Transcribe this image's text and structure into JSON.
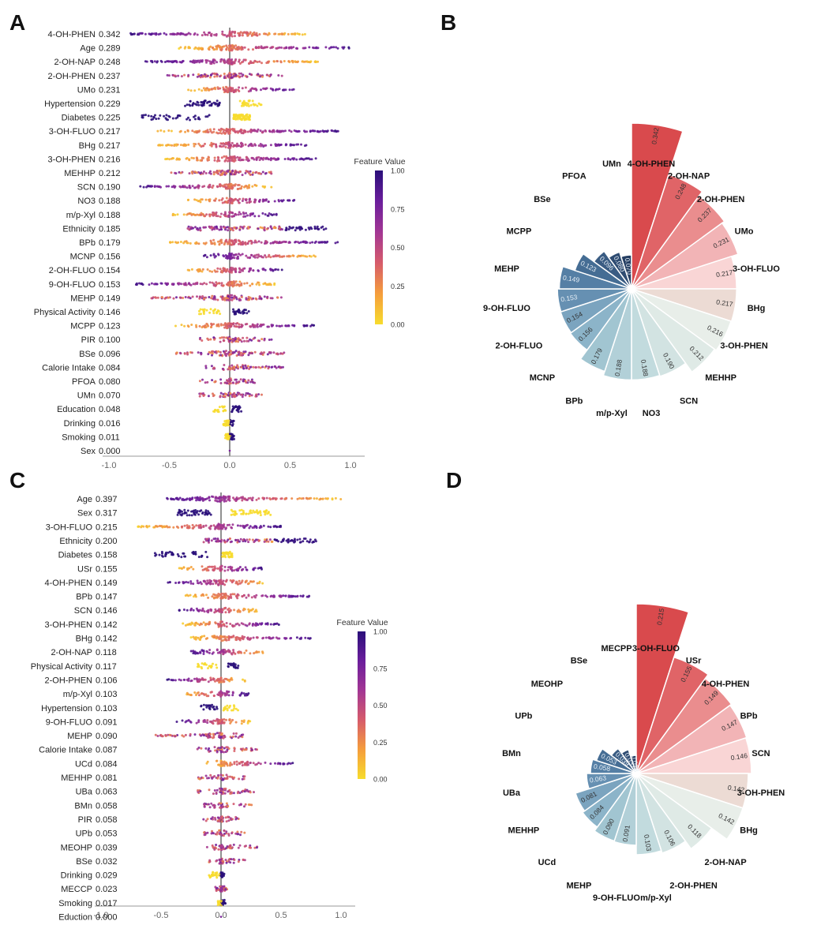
{
  "panels": [
    {
      "letter": "A"
    },
    {
      "letter": "B"
    },
    {
      "letter": "C"
    },
    {
      "letter": "D"
    }
  ],
  "colorbar": {
    "title": "Feature Value",
    "ticks": [
      "1.00",
      "0.75",
      "0.50",
      "0.25",
      "0.00"
    ],
    "stops": [
      "#2a0f7a",
      "#6b1e9c",
      "#a23694",
      "#d65b6b",
      "#f59d3c",
      "#f7dc2d"
    ]
  },
  "chart_data": [
    {
      "type": "scatter",
      "subtype": "shap-beeswarm",
      "panel": "A",
      "xlim": [
        -1.0,
        1.0
      ],
      "x_ticks": [
        "-1.0",
        "-0.5",
        "0.0",
        "0.5",
        "1.0"
      ],
      "features": [
        {
          "name": "4-OH-PHEN",
          "importance": "0.342",
          "min": -0.82,
          "max": 0.65,
          "pattern": "hi-neg"
        },
        {
          "name": "Age",
          "importance": "0.289",
          "min": -0.42,
          "max": 1.0,
          "pattern": "hi-pos"
        },
        {
          "name": "2-OH-NAP",
          "importance": "0.248",
          "min": -0.7,
          "max": 0.75,
          "pattern": "hi-neg"
        },
        {
          "name": "2-OH-PHEN",
          "importance": "0.237",
          "min": -0.55,
          "max": 0.45,
          "pattern": "mixed"
        },
        {
          "name": "UMo",
          "importance": "0.231",
          "min": -0.35,
          "max": 0.55,
          "pattern": "hi-pos"
        },
        {
          "name": "Hypertension",
          "importance": "0.229",
          "min": -0.4,
          "max": 0.28,
          "pattern": "binary-hi-neg"
        },
        {
          "name": "Diabetes",
          "importance": "0.225",
          "min": -0.8,
          "max": 0.18,
          "pattern": "binary-hi-neg"
        },
        {
          "name": "3-OH-FLUO",
          "importance": "0.217",
          "min": -0.6,
          "max": 0.9,
          "pattern": "hi-pos"
        },
        {
          "name": "BHg",
          "importance": "0.217",
          "min": -0.6,
          "max": 0.65,
          "pattern": "hi-pos"
        },
        {
          "name": "3-OH-PHEN",
          "importance": "0.216",
          "min": -0.55,
          "max": 0.75,
          "pattern": "hi-pos"
        },
        {
          "name": "MEHHP",
          "importance": "0.212",
          "min": -0.5,
          "max": 0.35,
          "pattern": "mixed"
        },
        {
          "name": "SCN",
          "importance": "0.190",
          "min": -0.75,
          "max": 0.35,
          "pattern": "hi-neg"
        },
        {
          "name": "NO3",
          "importance": "0.188",
          "min": -0.35,
          "max": 0.55,
          "pattern": "hi-pos"
        },
        {
          "name": "m/p-Xyl",
          "importance": "0.188",
          "min": -0.48,
          "max": 0.4,
          "pattern": "hi-pos"
        },
        {
          "name": "Ethnicity",
          "importance": "0.185",
          "min": -0.35,
          "max": 0.8,
          "pattern": "categorical"
        },
        {
          "name": "BPb",
          "importance": "0.179",
          "min": -0.5,
          "max": 0.9,
          "pattern": "hi-pos"
        },
        {
          "name": "MCNP",
          "importance": "0.156",
          "min": -0.22,
          "max": 0.72,
          "pattern": "hi-neg"
        },
        {
          "name": "2-OH-FLUO",
          "importance": "0.154",
          "min": -0.35,
          "max": 0.45,
          "pattern": "hi-pos"
        },
        {
          "name": "9-OH-FLUO",
          "importance": "0.153",
          "min": -0.78,
          "max": 0.38,
          "pattern": "hi-neg"
        },
        {
          "name": "MEHP",
          "importance": "0.149",
          "min": -0.65,
          "max": 0.45,
          "pattern": "mixed"
        },
        {
          "name": "Physical Activity",
          "importance": "0.146",
          "min": -0.28,
          "max": 0.18,
          "pattern": "binary-hi-pos"
        },
        {
          "name": "MCPP",
          "importance": "0.123",
          "min": -0.45,
          "max": 0.7,
          "pattern": "hi-pos"
        },
        {
          "name": "PIR",
          "importance": "0.100",
          "min": -0.25,
          "max": 0.35,
          "pattern": "mixed"
        },
        {
          "name": "BSe",
          "importance": "0.096",
          "min": -0.45,
          "max": 0.45,
          "pattern": "mixed"
        },
        {
          "name": "Calorie Intake",
          "importance": "0.084",
          "min": -0.22,
          "max": 0.45,
          "pattern": "mixed"
        },
        {
          "name": "PFOA",
          "importance": "0.080",
          "min": -0.25,
          "max": 0.22,
          "pattern": "mixed"
        },
        {
          "name": "UMn",
          "importance": "0.070",
          "min": -0.25,
          "max": 0.28,
          "pattern": "mixed"
        },
        {
          "name": "Education",
          "importance": "0.048",
          "min": -0.15,
          "max": 0.1,
          "pattern": "binary-hi-pos"
        },
        {
          "name": "Drinking",
          "importance": "0.016",
          "min": -0.05,
          "max": 0.03,
          "pattern": "binary-hi-pos"
        },
        {
          "name": "Smoking",
          "importance": "0.011",
          "min": -0.03,
          "max": 0.03,
          "pattern": "binary-hi-pos"
        },
        {
          "name": "Sex",
          "importance": "0.000",
          "min": 0.0,
          "max": 0.0,
          "pattern": "zero"
        }
      ]
    },
    {
      "type": "bar",
      "subtype": "polar",
      "panel": "B",
      "max_value": 0.342,
      "categories": [
        "4-OH-PHEN",
        "2-OH-NAP",
        "2-OH-PHEN",
        "UMo",
        "3-OH-FLUO",
        "BHg",
        "3-OH-PHEN",
        "MEHHP",
        "SCN",
        "NO3",
        "m/p-Xyl",
        "BPb",
        "MCNP",
        "2-OH-FLUO",
        "9-OH-FLUO",
        "MEHP",
        "MCPP",
        "BSe",
        "PFOA",
        "UMn"
      ],
      "values": [
        0.342,
        0.248,
        0.237,
        0.231,
        0.217,
        0.217,
        0.216,
        0.212,
        0.19,
        0.188,
        0.188,
        0.179,
        0.156,
        0.154,
        0.153,
        0.149,
        0.123,
        0.096,
        0.08,
        0.07
      ],
      "value_labels": [
        "0.342",
        "0.248",
        "0.237",
        "0.231",
        "0.217",
        "0.217",
        "0.216",
        "0.212",
        "0.190",
        "0.188",
        "0.188",
        "0.179",
        "0.156",
        "0.154",
        "0.153",
        "0.149",
        "0.123",
        "0.096",
        "0.080",
        "0.070"
      ]
    },
    {
      "type": "scatter",
      "subtype": "shap-beeswarm",
      "panel": "C",
      "xlim": [
        -1.0,
        1.0
      ],
      "x_ticks": [
        "-1.0",
        "-0.5",
        "0.0",
        "0.5",
        "1.0"
      ],
      "features": [
        {
          "name": "Age",
          "importance": "0.397",
          "min": -0.48,
          "max": 1.0,
          "pattern": "hi-neg"
        },
        {
          "name": "Sex",
          "importance": "0.317",
          "min": -0.4,
          "max": 0.45,
          "pattern": "binary-hi-neg"
        },
        {
          "name": "3-OH-FLUO",
          "importance": "0.215",
          "min": -0.7,
          "max": 0.5,
          "pattern": "hi-pos"
        },
        {
          "name": "Ethnicity",
          "importance": "0.200",
          "min": -0.15,
          "max": 0.8,
          "pattern": "categorical"
        },
        {
          "name": "Diabetes",
          "importance": "0.158",
          "min": -0.6,
          "max": 0.1,
          "pattern": "binary-hi-neg"
        },
        {
          "name": "USr",
          "importance": "0.155",
          "min": -0.35,
          "max": 0.35,
          "pattern": "hi-pos"
        },
        {
          "name": "4-OH-PHEN",
          "importance": "0.149",
          "min": -0.45,
          "max": 0.4,
          "pattern": "hi-neg"
        },
        {
          "name": "BPb",
          "importance": "0.147",
          "min": -0.3,
          "max": 0.75,
          "pattern": "hi-pos"
        },
        {
          "name": "SCN",
          "importance": "0.146",
          "min": -0.35,
          "max": 0.3,
          "pattern": "hi-neg"
        },
        {
          "name": "3-OH-PHEN",
          "importance": "0.142",
          "min": -0.32,
          "max": 0.5,
          "pattern": "hi-pos"
        },
        {
          "name": "BHg",
          "importance": "0.142",
          "min": -0.25,
          "max": 0.75,
          "pattern": "hi-pos"
        },
        {
          "name": "2-OH-NAP",
          "importance": "0.118",
          "min": -0.25,
          "max": 0.38,
          "pattern": "hi-neg"
        },
        {
          "name": "Physical Activity",
          "importance": "0.117",
          "min": -0.22,
          "max": 0.15,
          "pattern": "binary-hi-pos"
        },
        {
          "name": "2-OH-PHEN",
          "importance": "0.106",
          "min": -0.45,
          "max": 0.2,
          "pattern": "hi-neg"
        },
        {
          "name": "m/p-Xyl",
          "importance": "0.103",
          "min": -0.33,
          "max": 0.25,
          "pattern": "hi-pos"
        },
        {
          "name": "Hypertension",
          "importance": "0.103",
          "min": -0.18,
          "max": 0.15,
          "pattern": "binary-hi-neg"
        },
        {
          "name": "9-OH-FLUO",
          "importance": "0.091",
          "min": -0.38,
          "max": 0.25,
          "pattern": "hi-neg"
        },
        {
          "name": "MEHP",
          "importance": "0.090",
          "min": -0.55,
          "max": 0.2,
          "pattern": "mixed"
        },
        {
          "name": "Calorie Intake",
          "importance": "0.087",
          "min": -0.2,
          "max": 0.3,
          "pattern": "mixed"
        },
        {
          "name": "UCd",
          "importance": "0.084",
          "min": -0.12,
          "max": 0.6,
          "pattern": "hi-pos"
        },
        {
          "name": "MEHHP",
          "importance": "0.081",
          "min": -0.2,
          "max": 0.2,
          "pattern": "mixed"
        },
        {
          "name": "UBa",
          "importance": "0.063",
          "min": -0.2,
          "max": 0.28,
          "pattern": "mixed"
        },
        {
          "name": "BMn",
          "importance": "0.058",
          "min": -0.15,
          "max": 0.28,
          "pattern": "mixed"
        },
        {
          "name": "PIR",
          "importance": "0.058",
          "min": -0.15,
          "max": 0.15,
          "pattern": "mixed"
        },
        {
          "name": "UPb",
          "importance": "0.053",
          "min": -0.15,
          "max": 0.2,
          "pattern": "mixed"
        },
        {
          "name": "MEOHP",
          "importance": "0.039",
          "min": -0.12,
          "max": 0.35,
          "pattern": "mixed"
        },
        {
          "name": "BSe",
          "importance": "0.032",
          "min": -0.12,
          "max": 0.2,
          "pattern": "mixed"
        },
        {
          "name": "Drinking",
          "importance": "0.029",
          "min": -0.1,
          "max": 0.02,
          "pattern": "binary-hi-pos"
        },
        {
          "name": "MECCP",
          "importance": "0.023",
          "min": -0.05,
          "max": 0.05,
          "pattern": "mixed"
        },
        {
          "name": "Smoking",
          "importance": "0.017",
          "min": -0.02,
          "max": 0.03,
          "pattern": "binary-hi-pos"
        },
        {
          "name": "Eduction",
          "importance": "0.000",
          "min": 0.0,
          "max": 0.0,
          "pattern": "zero"
        }
      ]
    },
    {
      "type": "bar",
      "subtype": "polar",
      "panel": "D",
      "max_value": 0.215,
      "categories": [
        "3-OH-FLUO",
        "USr",
        "4-OH-PHEN",
        "BPb",
        "SCN",
        "3-OH-PHEN",
        "BHg",
        "2-OH-NAP",
        "2-OH-PHEN",
        "m/p-Xyl",
        "9-OH-FLUO",
        "MEHP",
        "UCd",
        "MEHHP",
        "UBa",
        "BMn",
        "UPb",
        "MEOHP",
        "BSe",
        "MECPP"
      ],
      "values": [
        0.215,
        0.155,
        0.149,
        0.147,
        0.146,
        0.142,
        0.142,
        0.118,
        0.106,
        0.103,
        0.091,
        0.09,
        0.084,
        0.081,
        0.063,
        0.058,
        0.053,
        0.039,
        0.032,
        0.023
      ],
      "value_labels": [
        "0.215",
        "0.155",
        "0.149",
        "0.147",
        "0.146",
        "0.142",
        "0.142",
        "0.118",
        "0.106",
        "0.103",
        "0.091",
        "0.090",
        "0.084",
        "0.081",
        "0.063",
        "0.058",
        "0.053",
        "0.039",
        "0.032",
        "0.023"
      ]
    }
  ]
}
